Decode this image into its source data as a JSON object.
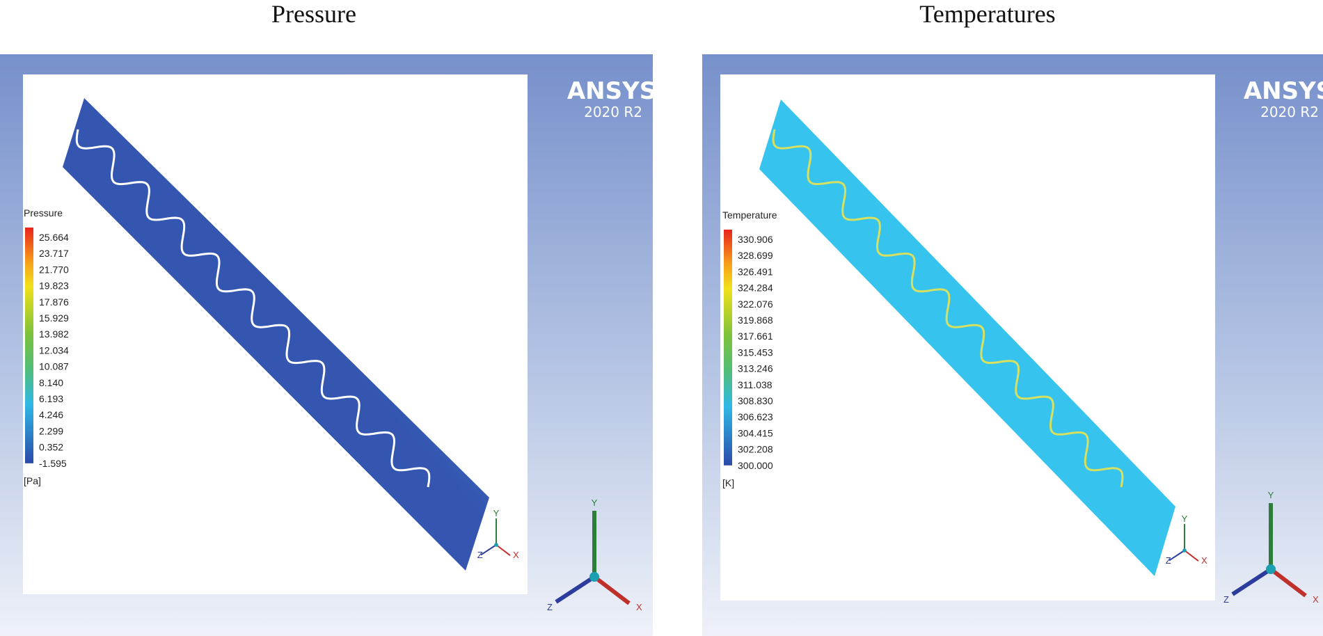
{
  "panels": [
    {
      "title": "Pressure",
      "logo": {
        "brand": "ANSYS",
        "version": "2020 R2"
      },
      "legend": {
        "title": "Pressure",
        "labels": [
          "25.664",
          "23.717",
          "21.770",
          "19.823",
          "17.876",
          "15.929",
          "13.982",
          "12.034",
          "10.087",
          "8.140",
          "6.193",
          "4.246",
          "2.299",
          "0.352",
          "-1.595"
        ],
        "unit": "[Pa]"
      },
      "axes": {
        "x": "X",
        "y": "Y",
        "z": "Z"
      }
    },
    {
      "title": "Temperatures",
      "logo": {
        "brand": "ANSYS",
        "version": "2020 R2"
      },
      "legend": {
        "title": "Temperature",
        "labels": [
          "330.906",
          "328.699",
          "326.491",
          "324.284",
          "322.076",
          "319.868",
          "317.661",
          "315.453",
          "313.246",
          "311.038",
          "308.830",
          "306.623",
          "304.415",
          "302.208",
          "300.000"
        ],
        "unit": "[K]"
      },
      "axes": {
        "x": "X",
        "y": "Y",
        "z": "Z"
      }
    }
  ]
}
